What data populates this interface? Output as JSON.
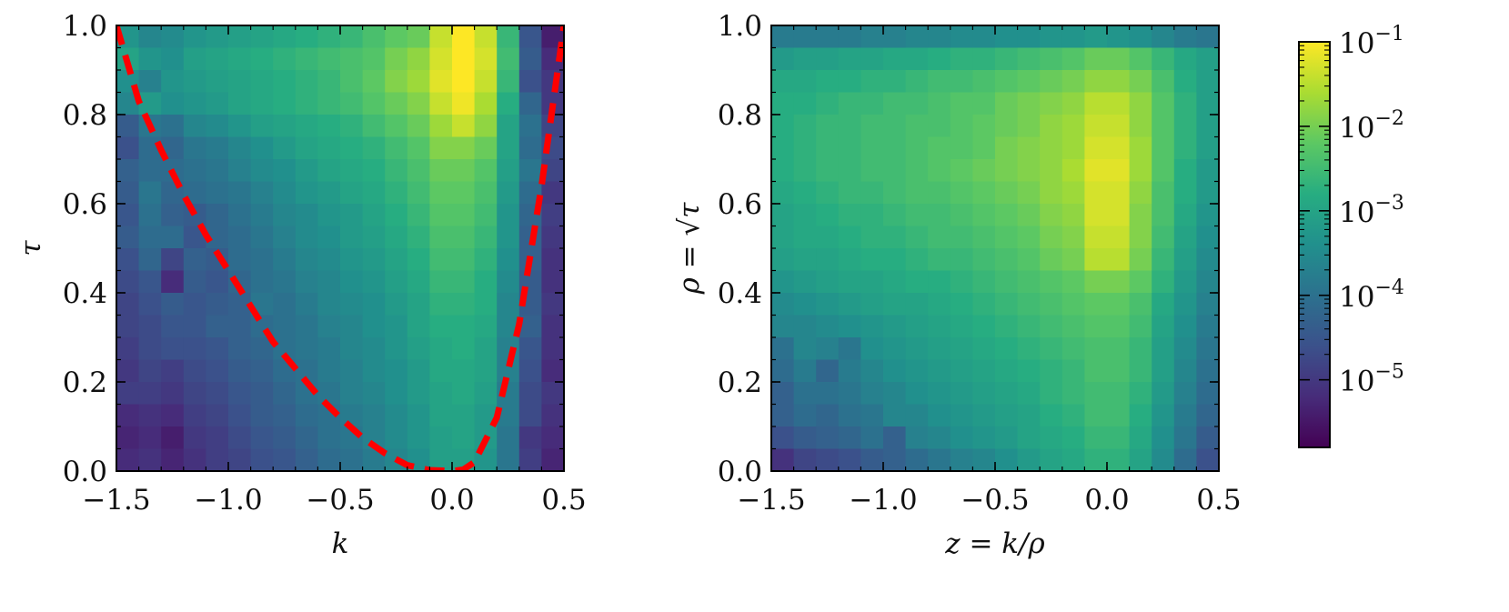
{
  "chart_data": [
    {
      "type": "heatmap",
      "xlabel": "k",
      "ylabel": "τ",
      "xlim": [
        -1.5,
        0.5
      ],
      "ylim": [
        0.0,
        1.0
      ],
      "x_bins": 20,
      "y_bins": 20,
      "x_tick_labels": [
        "−1.5",
        "−1.0",
        "−0.5",
        "0.0",
        "0.5"
      ],
      "x_tick_values": [
        -1.5,
        -1.0,
        -0.5,
        0.0,
        0.5
      ],
      "y_tick_labels": [
        "0.0",
        "0.2",
        "0.4",
        "0.6",
        "0.8",
        "1.0"
      ],
      "y_tick_values": [
        0.0,
        0.2,
        0.4,
        0.6,
        0.8,
        1.0
      ],
      "color_scale": "log",
      "colormap": "viridis",
      "overlay": {
        "type": "dashed-line",
        "color": "#ff0000",
        "points": [
          [
            -1.5,
            1.0
          ],
          [
            -1.4,
            0.83
          ],
          [
            -1.3,
            0.72
          ],
          [
            -1.2,
            0.62
          ],
          [
            -1.1,
            0.53
          ],
          [
            -1.0,
            0.45
          ],
          [
            -0.9,
            0.37
          ],
          [
            -0.8,
            0.29
          ],
          [
            -0.7,
            0.23
          ],
          [
            -0.6,
            0.17
          ],
          [
            -0.5,
            0.12
          ],
          [
            -0.4,
            0.075
          ],
          [
            -0.3,
            0.04
          ],
          [
            -0.2,
            0.013
          ],
          [
            -0.1,
            0.002
          ],
          [
            0.0,
            0.0
          ],
          [
            0.05,
            0.003
          ],
          [
            0.1,
            0.02
          ],
          [
            0.2,
            0.12
          ],
          [
            0.3,
            0.33
          ],
          [
            0.4,
            0.64
          ],
          [
            0.5,
            1.0
          ]
        ]
      },
      "grid_log10_density": [
        [
          -3.3,
          -3.6,
          -3.5,
          -3.3,
          -3.2,
          -3.1,
          -3.0,
          -2.9,
          -2.8,
          -2.7,
          -2.6,
          -2.4,
          -2.2,
          -2.1,
          -1.4,
          -1.0,
          -1.4,
          -2.6,
          -4.5,
          -5.4
        ],
        [
          -3.0,
          -3.3,
          -3.4,
          -3.1,
          -3.0,
          -2.9,
          -2.8,
          -2.7,
          -2.6,
          -2.5,
          -2.4,
          -2.3,
          -2.0,
          -1.8,
          -1.3,
          -0.9,
          -1.3,
          -2.5,
          -4.4,
          -5.2
        ],
        [
          -3.4,
          -3.7,
          -3.3,
          -3.2,
          -3.1,
          -3.0,
          -2.9,
          -2.8,
          -2.7,
          -2.6,
          -2.4,
          -2.2,
          -1.9,
          -1.7,
          -1.2,
          -0.9,
          -1.4,
          -2.6,
          -4.6,
          -5.0
        ],
        [
          -3.6,
          -3.2,
          -3.4,
          -3.3,
          -3.2,
          -3.0,
          -2.9,
          -2.8,
          -2.7,
          -2.6,
          -2.5,
          -2.3,
          -2.1,
          -1.9,
          -1.4,
          -1.1,
          -1.6,
          -2.8,
          -4.2,
          -5.0
        ],
        [
          -4.4,
          -3.9,
          -4.0,
          -3.6,
          -3.5,
          -3.3,
          -3.1,
          -3.0,
          -2.9,
          -2.8,
          -2.7,
          -2.5,
          -2.3,
          -2.1,
          -1.7,
          -1.4,
          -1.8,
          -3.0,
          -4.0,
          -4.8
        ],
        [
          -4.6,
          -4.1,
          -4.2,
          -3.9,
          -3.8,
          -3.6,
          -3.4,
          -3.2,
          -3.0,
          -2.9,
          -2.8,
          -2.7,
          -2.5,
          -2.3,
          -1.9,
          -1.9,
          -2.1,
          -3.0,
          -4.1,
          -4.7
        ],
        [
          -4.3,
          -4.1,
          -4.1,
          -4.0,
          -3.9,
          -3.7,
          -3.5,
          -3.4,
          -3.2,
          -3.0,
          -2.9,
          -2.8,
          -2.6,
          -2.4,
          -2.1,
          -2.1,
          -2.3,
          -3.1,
          -3.9,
          -4.8
        ],
        [
          -4.4,
          -3.9,
          -4.2,
          -4.1,
          -4.0,
          -3.9,
          -3.7,
          -3.5,
          -3.3,
          -3.2,
          -3.0,
          -2.9,
          -2.7,
          -2.5,
          -2.2,
          -2.2,
          -2.4,
          -3.2,
          -4.1,
          -5.0
        ],
        [
          -4.5,
          -4.0,
          -4.3,
          -4.4,
          -4.2,
          -4.0,
          -3.8,
          -3.6,
          -3.5,
          -3.3,
          -3.2,
          -3.0,
          -2.8,
          -2.6,
          -2.3,
          -2.3,
          -2.5,
          -3.3,
          -4.2,
          -4.9
        ],
        [
          -4.4,
          -4.1,
          -4.1,
          -4.5,
          -4.2,
          -4.1,
          -3.9,
          -3.7,
          -3.5,
          -3.4,
          -3.2,
          -3.1,
          -2.9,
          -2.7,
          -2.4,
          -2.4,
          -2.6,
          -3.3,
          -4.3,
          -5.0
        ],
        [
          -4.6,
          -4.2,
          -4.8,
          -4.3,
          -4.4,
          -4.1,
          -4.0,
          -3.8,
          -3.6,
          -3.5,
          -3.3,
          -3.2,
          -3.0,
          -2.8,
          -2.5,
          -2.5,
          -2.7,
          -3.4,
          -4.3,
          -5.1
        ],
        [
          -4.7,
          -4.5,
          -5.2,
          -4.4,
          -4.5,
          -4.2,
          -4.0,
          -3.9,
          -3.7,
          -3.6,
          -3.4,
          -3.3,
          -3.1,
          -2.9,
          -2.6,
          -2.6,
          -2.8,
          -3.5,
          -4.4,
          -5.1
        ],
        [
          -4.8,
          -4.6,
          -4.4,
          -4.5,
          -4.4,
          -4.3,
          -3.9,
          -4.0,
          -3.8,
          -3.6,
          -3.5,
          -3.4,
          -3.2,
          -3.0,
          -2.7,
          -2.7,
          -2.8,
          -3.6,
          -4.4,
          -5.0
        ],
        [
          -4.8,
          -4.7,
          -4.5,
          -4.5,
          -4.3,
          -4.3,
          -4.1,
          -4.0,
          -3.9,
          -3.7,
          -3.6,
          -3.4,
          -3.3,
          -3.0,
          -2.8,
          -2.8,
          -2.9,
          -3.6,
          -4.3,
          -5.1
        ],
        [
          -4.9,
          -4.7,
          -4.6,
          -4.6,
          -4.5,
          -4.3,
          -4.2,
          -4.0,
          -3.9,
          -3.8,
          -3.6,
          -3.5,
          -3.3,
          -3.1,
          -2.9,
          -2.8,
          -3.0,
          -3.7,
          -4.5,
          -5.1
        ],
        [
          -5.0,
          -4.8,
          -4.9,
          -4.7,
          -4.6,
          -4.4,
          -4.3,
          -4.1,
          -4.0,
          -3.8,
          -3.7,
          -3.5,
          -3.4,
          -3.2,
          -2.9,
          -2.9,
          -3.0,
          -3.7,
          -4.6,
          -5.2
        ],
        [
          -4.9,
          -4.9,
          -5.0,
          -4.8,
          -4.7,
          -4.5,
          -4.4,
          -4.2,
          -4.0,
          -3.9,
          -3.7,
          -3.6,
          -3.4,
          -3.2,
          -3.0,
          -2.9,
          -3.1,
          -3.8,
          -4.7,
          -5.0
        ],
        [
          -5.2,
          -5.1,
          -5.2,
          -4.9,
          -4.8,
          -4.6,
          -4.4,
          -4.3,
          -4.1,
          -4.0,
          -3.8,
          -3.7,
          -3.5,
          -3.3,
          -3.0,
          -3.0,
          -3.2,
          -3.8,
          -4.7,
          -5.1
        ],
        [
          -5.3,
          -5.2,
          -5.4,
          -5.0,
          -4.9,
          -4.7,
          -4.5,
          -4.4,
          -4.2,
          -4.0,
          -3.9,
          -3.7,
          -3.5,
          -3.3,
          -3.1,
          -3.0,
          -3.2,
          -3.9,
          -5.0,
          -5.2
        ],
        [
          -5.2,
          -5.1,
          -5.3,
          -5.1,
          -4.9,
          -4.8,
          -4.6,
          -4.5,
          -4.3,
          -4.1,
          -4.0,
          -3.8,
          -3.6,
          -3.4,
          -3.1,
          -3.1,
          -3.3,
          -3.9,
          -4.9,
          -5.3
        ]
      ]
    },
    {
      "type": "heatmap",
      "xlabel": "z = k/ρ",
      "ylabel": "ρ = √τ",
      "xlim": [
        -1.5,
        0.5
      ],
      "ylim": [
        0.0,
        1.0
      ],
      "x_bins": 20,
      "y_bins": 20,
      "x_tick_labels": [
        "−1.5",
        "−1.0",
        "−0.5",
        "0.0",
        "0.5"
      ],
      "x_tick_values": [
        -1.5,
        -1.0,
        -0.5,
        0.0,
        0.5
      ],
      "y_tick_labels": [
        "0.0",
        "0.2",
        "0.4",
        "0.6",
        "0.8",
        "1.0"
      ],
      "y_tick_values": [
        0.0,
        0.2,
        0.4,
        0.6,
        0.8,
        1.0
      ],
      "color_scale": "log",
      "colormap": "viridis",
      "grid_log10_density": [
        [
          -3.8,
          -3.8,
          -3.8,
          -3.8,
          -3.7,
          -3.7,
          -3.6,
          -3.6,
          -3.5,
          -3.5,
          -3.4,
          -3.4,
          -3.3,
          -3.3,
          -3.2,
          -3.3,
          -3.4,
          -3.6,
          -3.8,
          -3.9
        ],
        [
          -3.2,
          -3.1,
          -3.1,
          -3.0,
          -3.0,
          -2.9,
          -2.9,
          -2.8,
          -2.7,
          -2.7,
          -2.6,
          -2.5,
          -2.4,
          -2.3,
          -2.1,
          -2.1,
          -2.3,
          -2.6,
          -2.9,
          -3.1
        ],
        [
          -2.9,
          -2.9,
          -2.8,
          -2.8,
          -2.7,
          -2.7,
          -2.6,
          -2.5,
          -2.5,
          -2.4,
          -2.3,
          -2.2,
          -2.1,
          -2.0,
          -1.8,
          -1.8,
          -2.0,
          -2.4,
          -2.8,
          -3.1
        ],
        [
          -2.8,
          -2.8,
          -2.7,
          -2.6,
          -2.6,
          -2.5,
          -2.5,
          -2.4,
          -2.3,
          -2.3,
          -2.1,
          -2.0,
          -1.9,
          -1.8,
          -1.5,
          -1.5,
          -1.8,
          -2.3,
          -2.7,
          -3.1
        ],
        [
          -2.8,
          -2.7,
          -2.6,
          -2.6,
          -2.5,
          -2.5,
          -2.4,
          -2.4,
          -2.3,
          -2.2,
          -2.1,
          -2.0,
          -1.8,
          -1.7,
          -1.4,
          -1.4,
          -1.8,
          -2.3,
          -2.7,
          -3.1
        ],
        [
          -2.8,
          -2.7,
          -2.6,
          -2.6,
          -2.5,
          -2.5,
          -2.4,
          -2.3,
          -2.3,
          -2.2,
          -2.0,
          -1.9,
          -1.8,
          -1.7,
          -1.3,
          -1.3,
          -1.7,
          -2.3,
          -2.7,
          -3.1
        ],
        [
          -2.8,
          -2.7,
          -2.6,
          -2.6,
          -2.5,
          -2.5,
          -2.4,
          -2.3,
          -2.2,
          -2.1,
          -2.0,
          -1.9,
          -1.8,
          -1.6,
          -1.2,
          -1.2,
          -1.7,
          -2.3,
          -2.8,
          -3.2
        ],
        [
          -2.9,
          -2.8,
          -2.7,
          -2.6,
          -2.6,
          -2.5,
          -2.4,
          -2.4,
          -2.3,
          -2.2,
          -2.1,
          -2.0,
          -1.8,
          -1.7,
          -1.3,
          -1.3,
          -1.8,
          -2.4,
          -2.8,
          -3.2
        ],
        [
          -3.0,
          -2.9,
          -2.8,
          -2.7,
          -2.7,
          -2.6,
          -2.5,
          -2.5,
          -2.4,
          -2.3,
          -2.2,
          -2.1,
          -1.9,
          -1.8,
          -1.3,
          -1.3,
          -1.9,
          -2.4,
          -2.9,
          -3.3
        ],
        [
          -3.0,
          -2.9,
          -2.9,
          -2.8,
          -2.7,
          -2.7,
          -2.6,
          -2.5,
          -2.5,
          -2.4,
          -2.3,
          -2.2,
          -2.0,
          -1.9,
          -1.4,
          -1.4,
          -1.9,
          -2.5,
          -3.0,
          -3.4
        ],
        [
          -3.1,
          -3.0,
          -3.0,
          -2.9,
          -2.8,
          -2.8,
          -2.7,
          -2.6,
          -2.6,
          -2.5,
          -2.4,
          -2.3,
          -2.1,
          -2.0,
          -1.5,
          -1.5,
          -2.0,
          -2.6,
          -3.1,
          -3.5
        ],
        [
          -3.3,
          -3.2,
          -3.1,
          -3.0,
          -3.0,
          -2.9,
          -2.8,
          -2.8,
          -2.7,
          -2.6,
          -2.5,
          -2.4,
          -2.3,
          -2.2,
          -2.0,
          -2.0,
          -2.2,
          -2.7,
          -3.2,
          -3.6
        ],
        [
          -3.5,
          -3.4,
          -3.3,
          -3.2,
          -3.1,
          -3.0,
          -3.0,
          -2.9,
          -2.8,
          -2.7,
          -2.6,
          -2.5,
          -2.4,
          -2.3,
          -2.2,
          -2.2,
          -2.4,
          -2.9,
          -3.3,
          -3.7
        ],
        [
          -3.6,
          -3.6,
          -3.5,
          -3.4,
          -3.3,
          -3.2,
          -3.1,
          -3.0,
          -2.9,
          -2.8,
          -2.7,
          -2.6,
          -2.5,
          -2.4,
          -2.3,
          -2.3,
          -2.5,
          -3.0,
          -3.4,
          -3.8
        ],
        [
          -4.0,
          -3.6,
          -3.7,
          -3.9,
          -3.4,
          -3.3,
          -3.2,
          -3.1,
          -3.0,
          -2.9,
          -2.8,
          -2.7,
          -2.6,
          -2.5,
          -2.4,
          -2.4,
          -2.6,
          -3.1,
          -3.5,
          -3.9
        ],
        [
          -4.1,
          -3.8,
          -4.2,
          -3.8,
          -3.6,
          -3.4,
          -3.3,
          -3.2,
          -3.1,
          -3.0,
          -2.9,
          -2.8,
          -2.7,
          -2.6,
          -2.4,
          -2.4,
          -2.6,
          -3.1,
          -3.6,
          -4.0
        ],
        [
          -4.3,
          -4.0,
          -4.0,
          -3.9,
          -3.7,
          -3.6,
          -3.4,
          -3.3,
          -3.2,
          -3.1,
          -3.0,
          -2.9,
          -2.7,
          -2.6,
          -2.5,
          -2.5,
          -2.7,
          -3.2,
          -3.7,
          -4.1
        ],
        [
          -4.3,
          -4.1,
          -4.2,
          -4.0,
          -3.9,
          -3.6,
          -3.6,
          -3.4,
          -3.3,
          -3.2,
          -3.1,
          -3.0,
          -2.8,
          -2.7,
          -2.5,
          -2.5,
          -2.8,
          -3.3,
          -3.8,
          -4.2
        ],
        [
          -4.6,
          -4.4,
          -4.3,
          -4.2,
          -4.0,
          -4.3,
          -3.7,
          -3.6,
          -3.4,
          -3.3,
          -3.2,
          -3.0,
          -2.9,
          -2.8,
          -2.6,
          -2.6,
          -2.9,
          -3.4,
          -3.9,
          -4.4
        ],
        [
          -5.1,
          -4.8,
          -4.7,
          -4.6,
          -4.4,
          -4.3,
          -4.1,
          -3.9,
          -3.7,
          -3.6,
          -3.4,
          -3.2,
          -3.0,
          -2.9,
          -2.7,
          -2.7,
          -3.0,
          -3.5,
          -4.1,
          -4.6
        ]
      ]
    }
  ],
  "colorbar": {
    "scale": "log",
    "colormap": "viridis",
    "range_log10": [
      -5.8,
      -1.0
    ],
    "tick_exponents": [
      -1,
      -2,
      -3,
      -4,
      -5
    ],
    "tick_base": "10"
  }
}
